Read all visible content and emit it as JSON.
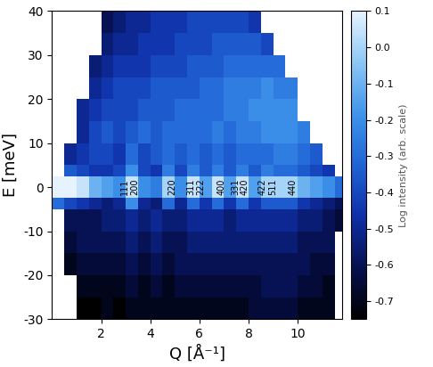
{
  "chart_data": {
    "type": "heatmap",
    "xlabel": "Q [Å⁻¹]",
    "ylabel": "E [meV]",
    "xlim": [
      0,
      11.8
    ],
    "xticks": [
      2,
      4,
      6,
      8,
      10
    ],
    "ylim": [
      -30,
      40
    ],
    "yticks": [
      -30,
      -20,
      -10,
      0,
      10,
      20,
      30,
      40
    ],
    "x_edges": [
      0,
      0.5,
      1,
      1.5,
      2,
      2.5,
      3,
      3.5,
      4,
      4.5,
      5,
      5.5,
      6,
      6.5,
      7,
      7.5,
      8,
      8.5,
      9,
      9.5,
      10,
      10.5,
      11,
      11.5,
      12
    ],
    "y_edges": [
      -30,
      -25,
      -20,
      -15,
      -10,
      -5,
      -2.5,
      2.5,
      5,
      10,
      15,
      20,
      25,
      30,
      35,
      40
    ],
    "cells": [
      [
        null,
        null,
        -0.75,
        -0.75,
        -0.7,
        -0.75,
        -0.7,
        -0.7,
        -0.7,
        -0.7,
        -0.7,
        -0.7,
        -0.7,
        -0.7,
        -0.7,
        -0.7,
        -0.65,
        -0.65,
        -0.65,
        -0.65,
        -0.7,
        -0.7,
        -0.7,
        null
      ],
      [
        null,
        null,
        -0.7,
        -0.7,
        -0.7,
        -0.7,
        -0.65,
        -0.7,
        -0.65,
        -0.7,
        -0.65,
        -0.65,
        -0.65,
        -0.65,
        -0.65,
        -0.65,
        -0.65,
        -0.6,
        -0.6,
        -0.6,
        -0.65,
        -0.65,
        -0.7,
        null
      ],
      [
        null,
        -0.7,
        -0.65,
        -0.65,
        -0.65,
        -0.65,
        -0.6,
        -0.65,
        -0.6,
        -0.65,
        -0.6,
        -0.6,
        -0.6,
        -0.6,
        -0.6,
        -0.6,
        -0.6,
        -0.6,
        -0.6,
        -0.6,
        -0.6,
        -0.65,
        -0.65,
        null
      ],
      [
        null,
        -0.65,
        -0.6,
        -0.6,
        -0.6,
        -0.6,
        -0.55,
        -0.6,
        -0.55,
        -0.6,
        -0.6,
        -0.55,
        -0.55,
        -0.55,
        -0.55,
        -0.55,
        -0.55,
        -0.55,
        -0.55,
        -0.55,
        -0.6,
        -0.6,
        -0.6,
        null
      ],
      [
        null,
        -0.6,
        -0.6,
        -0.6,
        -0.55,
        -0.55,
        -0.5,
        -0.55,
        -0.5,
        -0.55,
        -0.55,
        -0.5,
        -0.5,
        -0.5,
        -0.55,
        -0.5,
        -0.5,
        -0.5,
        -0.5,
        -0.5,
        -0.55,
        -0.55,
        -0.6,
        -0.65
      ],
      [
        -0.3,
        -0.4,
        -0.45,
        -0.5,
        -0.55,
        -0.5,
        -0.2,
        -0.5,
        -0.55,
        -0.3,
        -0.5,
        -0.3,
        -0.45,
        -0.3,
        -0.45,
        -0.3,
        -0.45,
        -0.35,
        -0.35,
        -0.35,
        -0.45,
        -0.5,
        -0.55,
        -0.6
      ],
      [
        0.1,
        0.1,
        0.05,
        -0.1,
        -0.15,
        -0.2,
        0.05,
        -0.2,
        -0.25,
        0.0,
        -0.2,
        0.05,
        -0.15,
        0.05,
        -0.15,
        0.05,
        -0.15,
        0.0,
        0.0,
        0.0,
        -0.1,
        -0.15,
        -0.2,
        -0.3
      ],
      [
        null,
        -0.35,
        -0.4,
        -0.45,
        -0.45,
        -0.4,
        -0.2,
        -0.4,
        -0.45,
        -0.25,
        -0.4,
        -0.25,
        -0.35,
        -0.25,
        -0.35,
        -0.25,
        -0.35,
        -0.25,
        -0.3,
        -0.3,
        -0.35,
        -0.4,
        -0.45,
        null
      ],
      [
        null,
        -0.5,
        -0.45,
        -0.4,
        -0.4,
        -0.45,
        -0.3,
        -0.4,
        -0.35,
        -0.3,
        -0.35,
        -0.3,
        -0.35,
        -0.3,
        -0.35,
        -0.3,
        -0.3,
        -0.3,
        -0.25,
        -0.25,
        -0.3,
        -0.35,
        null,
        null
      ],
      [
        null,
        null,
        -0.5,
        -0.4,
        -0.35,
        -0.4,
        -0.35,
        -0.3,
        -0.35,
        -0.3,
        -0.3,
        -0.3,
        -0.3,
        -0.25,
        -0.3,
        -0.25,
        -0.25,
        -0.2,
        -0.2,
        -0.2,
        -0.25,
        null,
        null,
        null
      ],
      [
        null,
        null,
        -0.5,
        -0.45,
        -0.4,
        -0.4,
        -0.4,
        -0.35,
        -0.35,
        -0.35,
        -0.3,
        -0.3,
        -0.3,
        -0.3,
        -0.25,
        -0.25,
        -0.2,
        -0.2,
        -0.2,
        -0.2,
        null,
        null,
        null,
        null
      ],
      [
        null,
        null,
        null,
        -0.5,
        -0.45,
        -0.4,
        -0.4,
        -0.4,
        -0.35,
        -0.35,
        -0.35,
        -0.35,
        -0.3,
        -0.3,
        -0.25,
        -0.25,
        -0.25,
        -0.2,
        -0.25,
        -0.25,
        null,
        null,
        null,
        null
      ],
      [
        null,
        null,
        null,
        -0.55,
        -0.5,
        -0.45,
        -0.45,
        -0.45,
        -0.4,
        -0.4,
        -0.4,
        -0.35,
        -0.35,
        -0.35,
        -0.3,
        -0.3,
        -0.3,
        -0.3,
        -0.3,
        null,
        null,
        null,
        null,
        null
      ],
      [
        null,
        null,
        null,
        null,
        -0.55,
        -0.5,
        -0.5,
        -0.45,
        -0.45,
        -0.45,
        -0.4,
        -0.4,
        -0.4,
        -0.35,
        -0.35,
        -0.35,
        -0.35,
        -0.4,
        null,
        null,
        null,
        null,
        null,
        null
      ],
      [
        null,
        null,
        null,
        null,
        -0.6,
        -0.55,
        -0.5,
        -0.5,
        -0.45,
        -0.45,
        -0.45,
        -0.4,
        -0.4,
        -0.4,
        -0.4,
        -0.4,
        -0.45,
        null,
        null,
        null,
        null,
        null,
        null,
        null
      ]
    ],
    "colorbar_label": "Log intensity (arb. scale)",
    "crange": [
      -0.75,
      0.1
    ],
    "cticks": [
      0.1,
      0.0,
      -0.1,
      -0.2,
      -0.3,
      -0.4,
      -0.5,
      -0.6,
      -0.7
    ],
    "annotations": [
      {
        "text": "111",
        "x": 2.95,
        "y": 0
      },
      {
        "text": "200",
        "x": 3.35,
        "y": 0
      },
      {
        "text": "220",
        "x": 4.9,
        "y": 0
      },
      {
        "text": "311",
        "x": 5.65,
        "y": 0
      },
      {
        "text": "222",
        "x": 6.05,
        "y": 0
      },
      {
        "text": "400",
        "x": 6.9,
        "y": 0
      },
      {
        "text": "331",
        "x": 7.45,
        "y": 0
      },
      {
        "text": "420",
        "x": 7.85,
        "y": 0
      },
      {
        "text": "422",
        "x": 8.55,
        "y": 0
      },
      {
        "text": "511",
        "x": 9.0,
        "y": 0
      },
      {
        "text": "440",
        "x": 9.8,
        "y": 0
      }
    ]
  }
}
